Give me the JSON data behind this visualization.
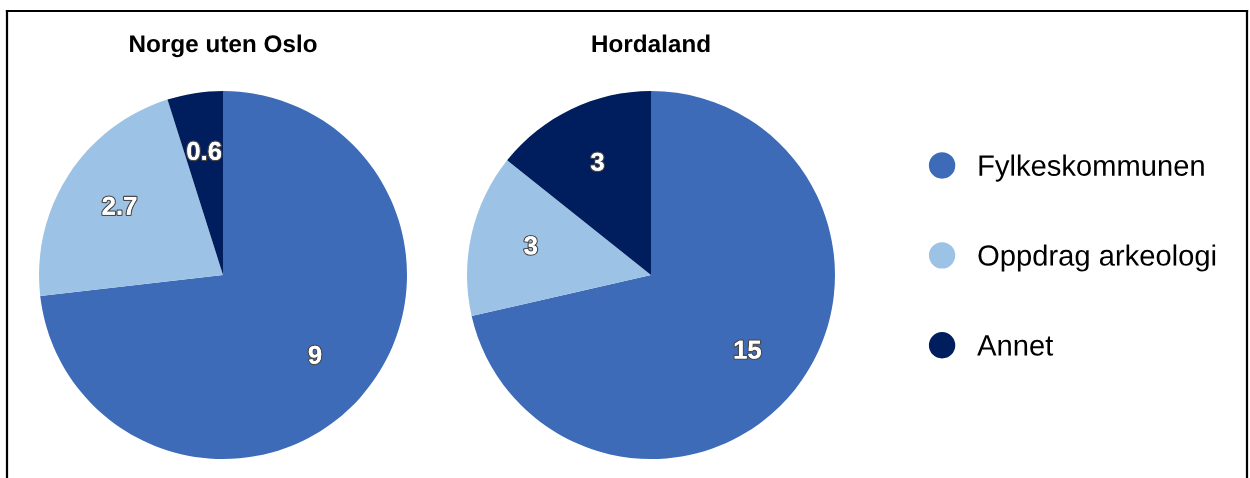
{
  "chart_data": [
    {
      "type": "pie",
      "title": "Norge uten Oslo",
      "categories": [
        "Fylkeskommunen",
        "Oppdrag arkeologi",
        "Annet"
      ],
      "values": [
        9,
        2.7,
        0.6
      ],
      "colors": [
        "#3d6bb8",
        "#9cc3e5",
        "#001e5e"
      ],
      "data_labels": true,
      "legend": "right"
    },
    {
      "type": "pie",
      "title": "Hordaland",
      "categories": [
        null,
        null,
        null
      ],
      "values": [
        15,
        3,
        3
      ],
      "colors": [
        "#3d6bb8",
        "#9cc3e5",
        "#001e5e"
      ],
      "data_labels": true
    }
  ]
}
